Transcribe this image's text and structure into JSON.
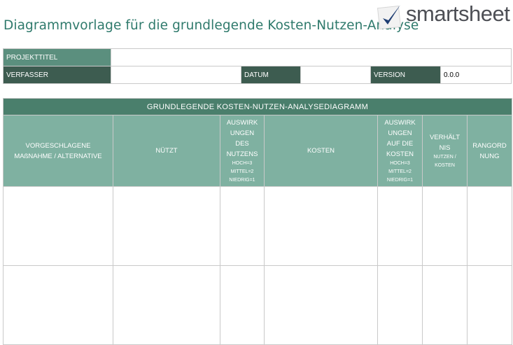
{
  "header": {
    "title": "Diagrammvorlage für die grundlegende Kosten-Nutzen-Analyse",
    "logo_text": "smartsheet"
  },
  "meta": {
    "projekttitel_label": "PROJEKTTITEL",
    "projekttitel_value": "",
    "verfasser_label": "VERFASSER",
    "verfasser_value": "",
    "datum_label": "DATUM",
    "datum_value": "",
    "version_label": "VERSION",
    "version_value": "0.0.0"
  },
  "table": {
    "heading": "GRUNDLEGENDE KOSTEN-NUTZEN-ANALYSEDIAGRAMM",
    "columns": [
      {
        "lines": [
          "VORGESCHLAGENE",
          "MAßNAHME / ALTERNATIVE"
        ],
        "sub": []
      },
      {
        "lines": [
          "NÜTZT"
        ],
        "sub": []
      },
      {
        "lines": [
          "AUSWIRK",
          "UNGEN",
          "DES",
          "NUTZENS"
        ],
        "sub": [
          "HOCH=3",
          "MITTEL=2",
          "NIEDRIG=1"
        ]
      },
      {
        "lines": [
          "KOSTEN"
        ],
        "sub": []
      },
      {
        "lines": [
          "AUSWIRK",
          "UNGEN",
          "AUF DIE",
          "KOSTEN"
        ],
        "sub": [
          "HOCH=3",
          "MITTEL=2",
          "NIEDRIG=1"
        ]
      },
      {
        "lines": [
          "VERHÄLT",
          "NIS"
        ],
        "sub": [
          "NUTZEN /",
          "KOSTEN"
        ]
      },
      {
        "lines": [
          "RANGORD",
          "NUNG"
        ],
        "sub": []
      }
    ],
    "rows": [
      [
        "",
        "",
        "",
        "",
        "",
        "",
        ""
      ],
      [
        "",
        "",
        "",
        "",
        "",
        "",
        ""
      ]
    ]
  },
  "colors": {
    "title": "#2f7a6c",
    "label_light": "#5b8f7e",
    "label_dark": "#3d5c50",
    "bar": "#4a7f6c",
    "column_header": "#7fb1a1"
  }
}
